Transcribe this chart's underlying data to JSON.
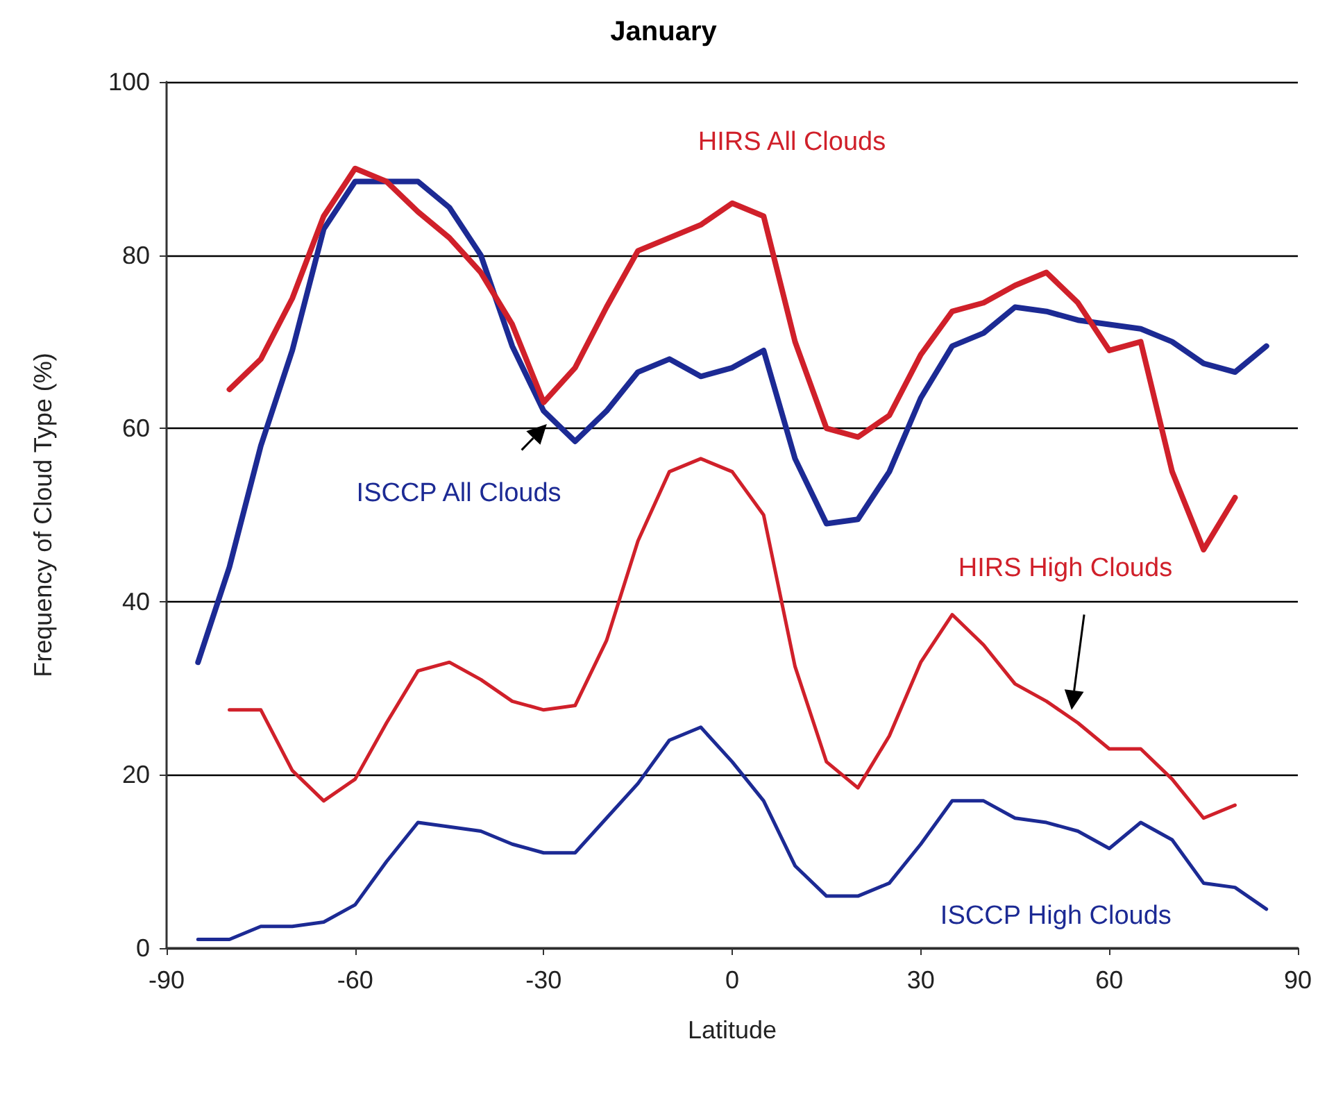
{
  "chart_data": {
    "type": "line",
    "title": "January",
    "xlabel": "Latitude",
    "ylabel": "Frequency of Cloud Type (%)",
    "xlim": [
      -90,
      90
    ],
    "xticks": [
      -90,
      -60,
      -30,
      0,
      30,
      60,
      90
    ],
    "ylim": [
      0,
      100
    ],
    "yticks": [
      0,
      20,
      40,
      60,
      80,
      100
    ],
    "grid": "y",
    "legend": false,
    "marker": "none",
    "line_style": "solid",
    "series": [
      {
        "name": "ISCCP All Clouds",
        "color": "#1c2a94",
        "x": [
          -85,
          -80,
          -75,
          -70,
          -65,
          -60,
          -55,
          -50,
          -45,
          -40,
          -35,
          -30,
          -25,
          -20,
          -15,
          -10,
          -5,
          0,
          5,
          10,
          15,
          20,
          25,
          30,
          35,
          40,
          45,
          50,
          55,
          60,
          65,
          70,
          75,
          80,
          85
        ],
        "values": [
          33,
          44,
          58,
          69,
          83,
          88.5,
          88.5,
          88.5,
          85.5,
          80,
          69.5,
          62,
          58.5,
          62,
          66.5,
          68,
          66,
          67,
          69,
          56.5,
          49,
          49.5,
          55,
          63.5,
          69.5,
          71,
          74,
          73.5,
          72.5,
          72,
          71.5,
          70,
          67.5,
          66.5,
          69.5
        ]
      },
      {
        "name": "HIRS All Clouds",
        "color": "#d0202a",
        "x": [
          -80,
          -75,
          -70,
          -65,
          -60,
          -55,
          -50,
          -45,
          -40,
          -35,
          -30,
          -25,
          -20,
          -15,
          -10,
          -5,
          0,
          5,
          10,
          15,
          20,
          25,
          30,
          35,
          40,
          45,
          50,
          55,
          60,
          65,
          70,
          75,
          80
        ],
        "values": [
          64.5,
          68,
          75,
          84.5,
          90,
          88.5,
          85,
          82,
          78,
          72,
          63,
          67,
          74,
          80.5,
          82,
          83.5,
          86,
          84.5,
          70,
          60,
          59,
          61.5,
          68.5,
          73.5,
          74.5,
          76.5,
          78,
          74.5,
          69,
          70,
          55,
          46,
          52
        ]
      },
      {
        "name": "HIRS High Clouds",
        "color": "#d0202a",
        "x": [
          -80,
          -75,
          -70,
          -65,
          -60,
          -55,
          -50,
          -45,
          -40,
          -35,
          -30,
          -25,
          -20,
          -15,
          -10,
          -5,
          0,
          5,
          10,
          15,
          20,
          25,
          30,
          35,
          40,
          45,
          50,
          55,
          60,
          65,
          70,
          75,
          80
        ],
        "values": [
          27.5,
          27.5,
          20.5,
          17,
          19.5,
          26,
          32,
          33,
          31,
          28.5,
          27.5,
          28,
          35.5,
          47,
          55,
          56.5,
          55,
          50,
          32.5,
          21.5,
          18.5,
          24.5,
          33,
          38.5,
          35,
          30.5,
          28.5,
          26,
          23,
          23,
          19.5,
          15,
          16.5
        ]
      },
      {
        "name": "ISCCP High Clouds",
        "color": "#1c2a94",
        "x": [
          -85,
          -80,
          -75,
          -70,
          -65,
          -60,
          -55,
          -50,
          -45,
          -40,
          -35,
          -30,
          -25,
          -20,
          -15,
          -10,
          -5,
          0,
          5,
          10,
          15,
          20,
          25,
          30,
          35,
          40,
          45,
          50,
          55,
          60,
          65,
          70,
          75,
          80,
          85
        ],
        "values": [
          1,
          1,
          2.5,
          2.5,
          3,
          5,
          10,
          14.5,
          14,
          13.5,
          12,
          11,
          11,
          15,
          19,
          24,
          25.5,
          21.5,
          17,
          9.5,
          6,
          6,
          7.5,
          12,
          17,
          17,
          15,
          14.5,
          13.5,
          11.5,
          14.5,
          12.5,
          7.5,
          7,
          4.5
        ]
      }
    ]
  }
}
